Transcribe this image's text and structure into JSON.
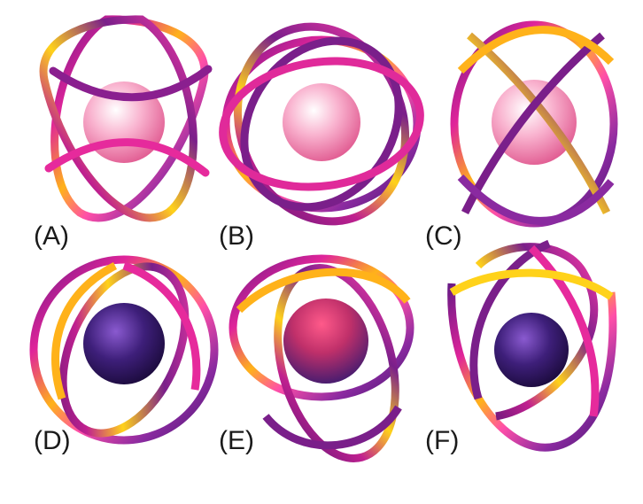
{
  "panels": [
    {
      "id": "A",
      "label": "(A)",
      "sphere": "pink"
    },
    {
      "id": "B",
      "label": "(B)",
      "sphere": "pink"
    },
    {
      "id": "C",
      "label": "(C)",
      "sphere": "pink"
    },
    {
      "id": "D",
      "label": "(D)",
      "sphere": "purple"
    },
    {
      "id": "E",
      "label": "(E)",
      "sphere": "purple"
    },
    {
      "id": "F",
      "label": "(F)",
      "sphere": "purple"
    }
  ],
  "colors": {
    "tube_main": "#7a1f8a",
    "tube_accent": "#ff3aa8",
    "tube_highlight": "#ffc21a",
    "sphere_pink": "#f58fb8",
    "sphere_purple": "#3a1a70"
  }
}
